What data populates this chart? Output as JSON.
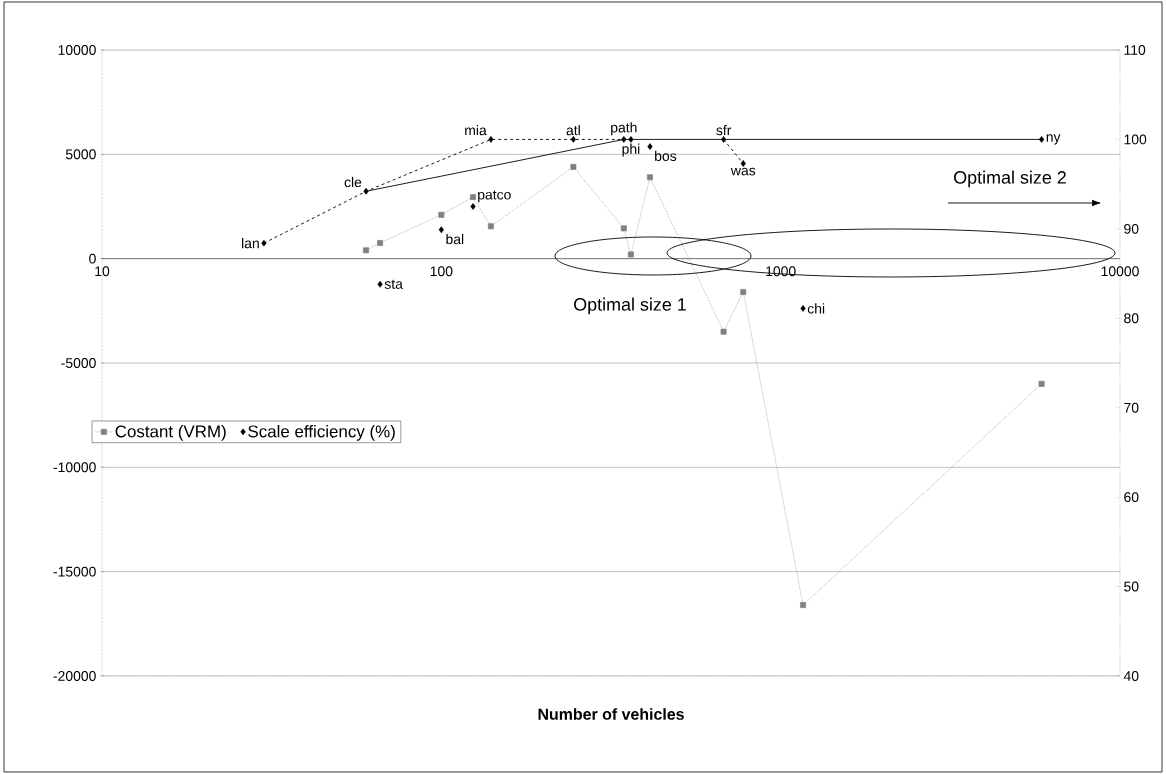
{
  "chart_data": {
    "type": "line",
    "xlabel": "Number of vehicles",
    "log": "x",
    "xlim": [
      10,
      10000
    ],
    "xticks": [
      10,
      100,
      1000,
      10000
    ],
    "ylim": [
      -20000,
      10000
    ],
    "yticks": [
      -20000,
      -15000,
      -10000,
      -5000,
      0,
      5000,
      10000
    ],
    "y2lim": [
      40,
      110
    ],
    "y2ticks": [
      40,
      50,
      60,
      70,
      80,
      90,
      100,
      110
    ],
    "grid": "y",
    "legend": "left",
    "annotations": [
      "Optimal size 1",
      "Optimal size 2"
    ],
    "series": [
      {
        "name": "Costant (VRM)",
        "color": "#808080",
        "marker": "square",
        "line_style": "dotted",
        "x": [
          60,
          66,
          100,
          124,
          140,
          245,
          345,
          362,
          412,
          679,
          776,
          1164,
          5875
        ],
        "values": [
          400,
          750,
          2100,
          2950,
          1550,
          4400,
          1450,
          200,
          3900,
          -3500,
          -1600,
          -16600,
          -6000
        ]
      },
      {
        "name": "Scale efficiency (%)",
        "type": "scatter",
        "axis": "y2",
        "color": "#000000",
        "marker": "diamond",
        "x": [
          30,
          60,
          66,
          100,
          124,
          140,
          245,
          345,
          362,
          412,
          679,
          776,
          1164,
          5875
        ],
        "values": [
          88.4,
          94.2,
          83.8,
          89.9,
          92.5,
          100,
          100,
          100,
          100,
          99.2,
          100,
          97.3,
          81.1,
          100
        ],
        "value_labels": [
          "lan",
          "cle",
          "sta",
          "bal",
          "patco",
          "mia",
          "atl",
          "path",
          "phi",
          "bos",
          "sfr",
          "was",
          "chi",
          "ny"
        ]
      },
      {
        "type": "line",
        "axis": "y2",
        "color": "#000000",
        "marker": "none",
        "line_style": "dashed",
        "x": [
          30,
          60,
          140,
          245,
          345
        ],
        "values": [
          88.4,
          94.2,
          100,
          100,
          100
        ]
      },
      {
        "type": "line",
        "axis": "y2",
        "color": "#000000",
        "marker": "none",
        "line_style": "solid",
        "x": [
          60,
          345,
          362,
          679,
          5875
        ],
        "values": [
          94.2,
          100,
          100,
          100,
          100
        ]
      },
      {
        "type": "line",
        "axis": "y2",
        "color": "#000000",
        "marker": "none",
        "line_style": "dashed",
        "x": [
          679,
          776
        ],
        "values": [
          100,
          97.3
        ]
      }
    ]
  }
}
